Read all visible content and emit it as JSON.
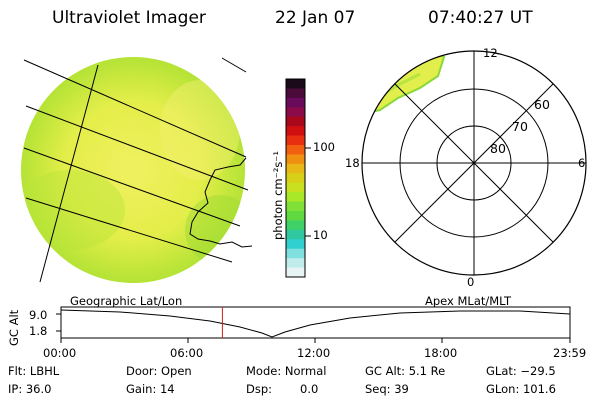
{
  "header": {
    "instrument": "Ultraviolet Imager",
    "date": "22 Jan 07",
    "time": "07:40:27 UT"
  },
  "colorbar": {
    "unit_label": "photon cm⁻²s⁻¹",
    "ticks": [
      "100",
      "10"
    ],
    "colors": [
      "#1a0a1a",
      "#4a0a3a",
      "#6a0a5a",
      "#8a0a4a",
      "#a8081a",
      "#d01010",
      "#e83010",
      "#f06010",
      "#f09010",
      "#e8b818",
      "#d8d018",
      "#c8e020",
      "#a8e828",
      "#80e038",
      "#60d840",
      "#40d068",
      "#30c8a0",
      "#30d0d0",
      "#80e0e0",
      "#c0ecec",
      "#e8f4f4"
    ]
  },
  "polar": {
    "lat_labels": [
      "60",
      "70",
      "80"
    ],
    "mlt_labels": {
      "top": "12",
      "bottom": "0",
      "left": "18",
      "right": "6"
    }
  },
  "timeline": {
    "left_label": "Geographic Lat/Lon",
    "right_label": "Apex MLat/MLT",
    "yaxis_label": "GC Alt",
    "y_ticks": [
      "9.0",
      "1.8"
    ],
    "x_ticks": [
      "00:00",
      "06:00",
      "12:00",
      "18:00",
      "23:59"
    ],
    "current_time_fraction": 0.317
  },
  "status": {
    "flt": "Flt: LBHL",
    "ip": "IP: 36.0",
    "door": "Door: Open",
    "gain": "Gain: 14",
    "mode": "Mode: Normal",
    "dsp": "Dsp:",
    "dsp_value": "0.0",
    "gc_alt": "GC Alt: 5.1 Re",
    "seq": "Seq: 39",
    "glat": "GLat: −29.5",
    "glon": "GLon: 101.6"
  }
}
